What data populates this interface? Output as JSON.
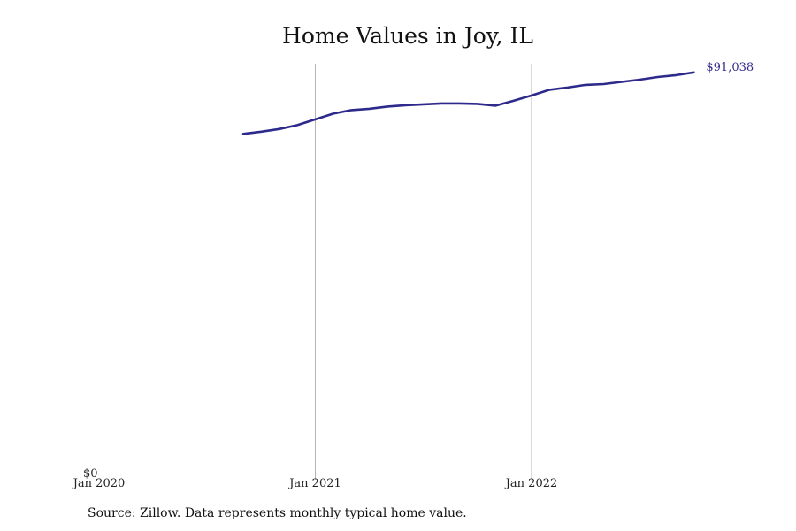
{
  "chart_data": {
    "type": "line",
    "title": "Home Values in Joy, IL",
    "xlabel": "",
    "ylabel": "",
    "x_ticks": [
      "Jan 2020",
      "Jan 2021",
      "Jan 2022"
    ],
    "y_ticks": [
      "$0"
    ],
    "ylim": [
      0,
      93000
    ],
    "xlim": [
      "2020-01",
      "2022-10"
    ],
    "grid": {
      "vertical": true,
      "horizontal": false
    },
    "end_label": "$91,038",
    "series": [
      {
        "color": "#2e2a8c",
        "x": [
          "2020-09",
          "2020-10",
          "2020-11",
          "2020-12",
          "2021-01",
          "2021-02",
          "2021-03",
          "2021-04",
          "2021-05",
          "2021-06",
          "2021-07",
          "2021-08",
          "2021-09",
          "2021-10",
          "2021-11",
          "2021-12",
          "2022-01",
          "2022-02",
          "2022-03",
          "2022-04",
          "2022-05",
          "2022-06",
          "2022-07",
          "2022-08",
          "2022-09",
          "2022-10"
        ],
        "values": [
          77100,
          77600,
          78200,
          79100,
          80400,
          81700,
          82500,
          82800,
          83300,
          83600,
          83800,
          84000,
          84000,
          83900,
          83500,
          84600,
          85800,
          87100,
          87600,
          88200,
          88400,
          88900,
          89400,
          90000,
          90400,
          91038
        ]
      }
    ]
  },
  "source_note": "Source: Zillow. Data represents monthly typical home value."
}
